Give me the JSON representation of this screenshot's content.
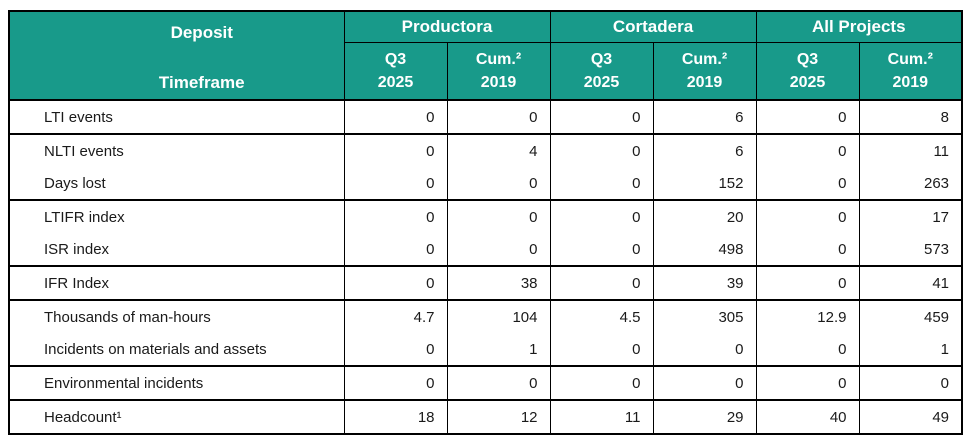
{
  "accent_color": "#189A8A",
  "table": {
    "corner": {
      "line1": "Deposit",
      "line2": "Timeframe"
    },
    "column_groups": [
      {
        "label": "Productora"
      },
      {
        "label": "Cortadera"
      },
      {
        "label": "All Projects"
      }
    ],
    "period_headers": [
      {
        "period": "Q3",
        "year": "2025"
      },
      {
        "period": "Cum.²",
        "year": "2019"
      },
      {
        "period": "Q3",
        "year": "2025"
      },
      {
        "period": "Cum.²",
        "year": "2019"
      },
      {
        "period": "Q3",
        "year": "2025"
      },
      {
        "period": "Cum.²",
        "year": "2019"
      }
    ],
    "rows": [
      {
        "label": "LTI events",
        "values": [
          "0",
          "0",
          "0",
          "6",
          "0",
          "8"
        ],
        "group_end": true
      },
      {
        "label": "NLTI events",
        "values": [
          "0",
          "4",
          "0",
          "6",
          "0",
          "11"
        ],
        "group_end": false
      },
      {
        "label": "Days lost",
        "values": [
          "0",
          "0",
          "0",
          "152",
          "0",
          "263"
        ],
        "group_end": true
      },
      {
        "label": "LTIFR index",
        "values": [
          "0",
          "0",
          "0",
          "20",
          "0",
          "17"
        ],
        "group_end": false
      },
      {
        "label": "ISR index",
        "values": [
          "0",
          "0",
          "0",
          "498",
          "0",
          "573"
        ],
        "group_end": true
      },
      {
        "label": "IFR Index",
        "values": [
          "0",
          "38",
          "0",
          "39",
          "0",
          "41"
        ],
        "group_end": true
      },
      {
        "label": "Thousands of man-hours",
        "values": [
          "4.7",
          "104",
          "4.5",
          "305",
          "12.9",
          "459"
        ],
        "group_end": false
      },
      {
        "label": "Incidents on materials and assets",
        "values": [
          "0",
          "1",
          "0",
          "0",
          "0",
          "1"
        ],
        "group_end": true
      },
      {
        "label": "Environmental incidents",
        "values": [
          "0",
          "0",
          "0",
          "0",
          "0",
          "0"
        ],
        "group_end": true
      },
      {
        "label": "Headcount¹",
        "values": [
          "18",
          "12",
          "11",
          "29",
          "40",
          "49"
        ],
        "group_end": true
      }
    ]
  }
}
